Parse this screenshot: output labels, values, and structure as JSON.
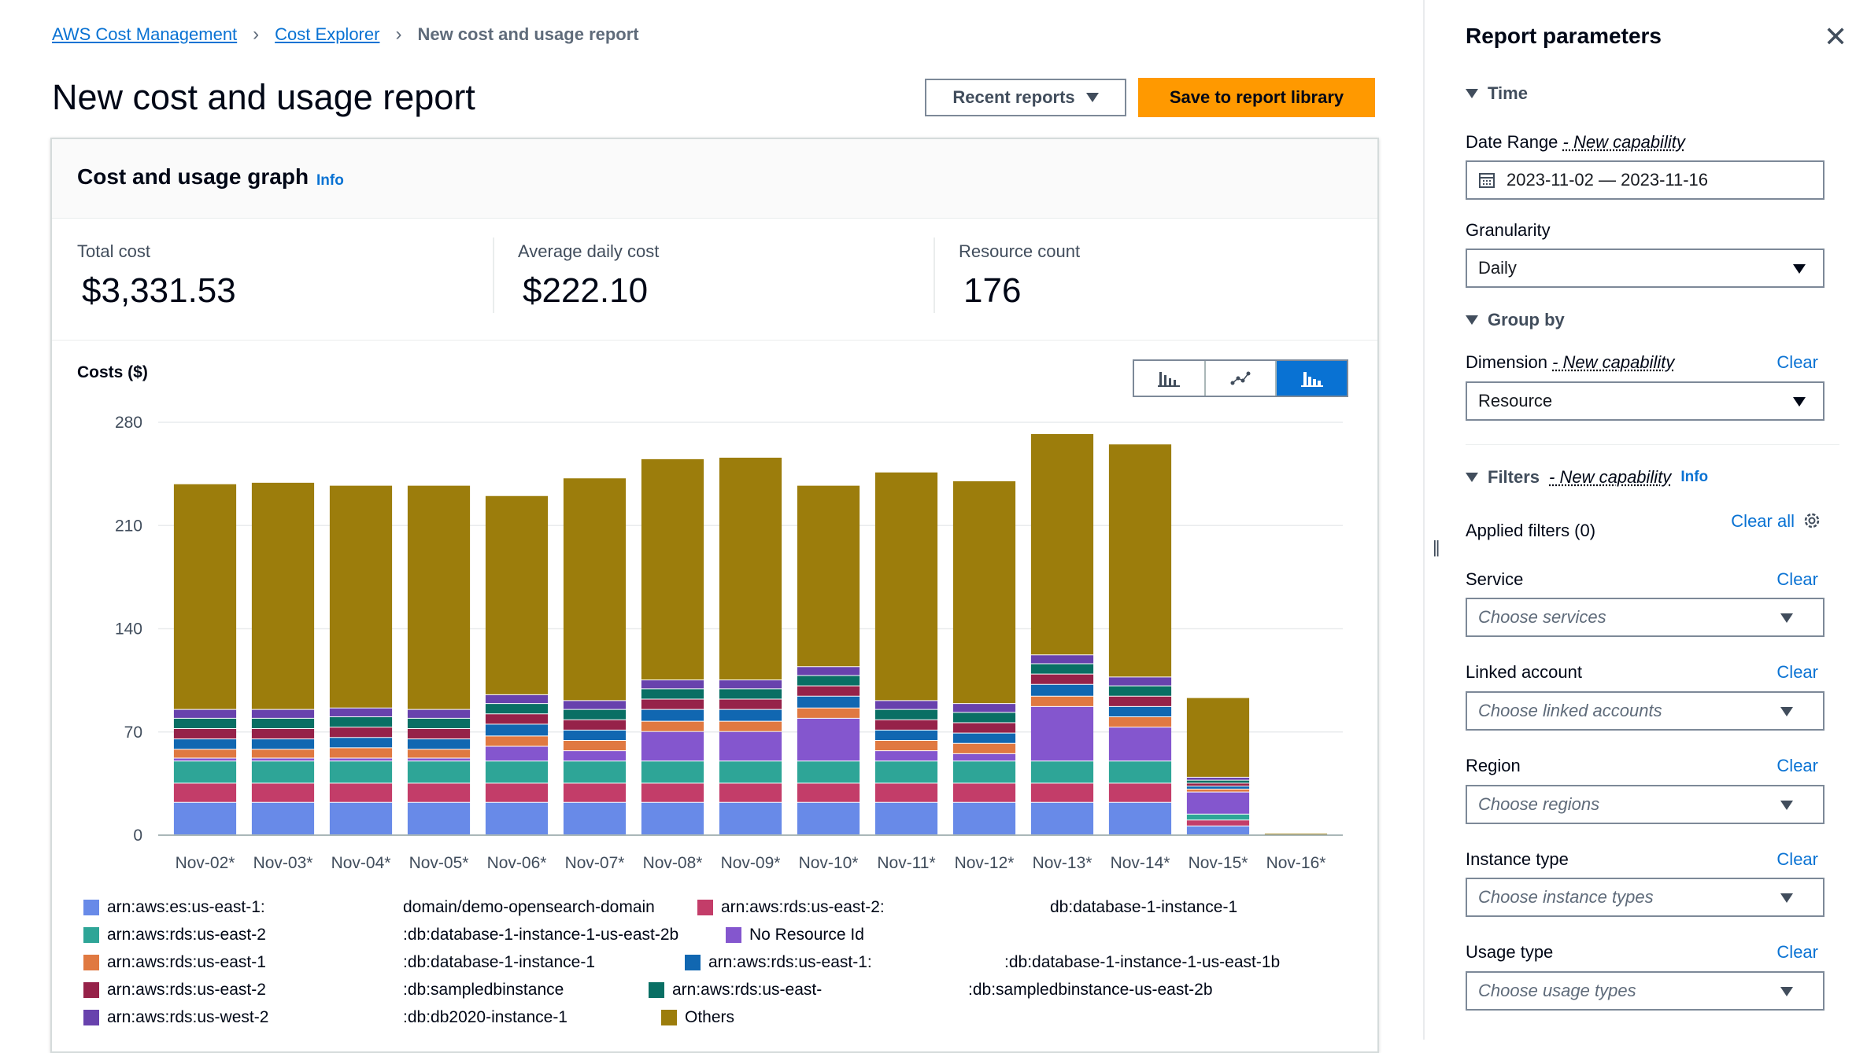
{
  "breadcrumb": {
    "items": [
      "AWS Cost Management",
      "Cost Explorer"
    ],
    "current": "New cost and usage report"
  },
  "page": {
    "title": "New cost and usage report",
    "recent_reports": "Recent reports",
    "save_button": "Save to report library"
  },
  "graph_card": {
    "title": "Cost and usage graph",
    "info": "Info",
    "metrics": [
      {
        "label": "Total cost",
        "value": "$3,331.53"
      },
      {
        "label": "Average daily cost",
        "value": "$222.10"
      },
      {
        "label": "Resource count",
        "value": "176"
      }
    ],
    "costs_label": "Costs ($)"
  },
  "chart_data": {
    "type": "bar",
    "stacked": true,
    "categories": [
      "Nov-02*",
      "Nov-03*",
      "Nov-04*",
      "Nov-05*",
      "Nov-06*",
      "Nov-07*",
      "Nov-08*",
      "Nov-09*",
      "Nov-10*",
      "Nov-11*",
      "Nov-12*",
      "Nov-13*",
      "Nov-14*",
      "Nov-15*",
      "Nov-16*"
    ],
    "ylim": [
      0,
      280
    ],
    "yticks": [
      0,
      70,
      140,
      210,
      280
    ],
    "grid": true,
    "legend_position": "bottom",
    "series": [
      {
        "name": "arn:aws:es:us-east-1:",
        "label_tail": "domain/demo-opensearch-domain",
        "color": "#688ae8",
        "values": [
          22,
          22,
          22,
          22,
          22,
          22,
          22,
          22,
          22,
          22,
          22,
          22,
          22,
          6,
          0
        ]
      },
      {
        "name": "arn:aws:rds:us-east-2:",
        "label_tail": "db:database-1-instance-1",
        "color": "#c33d69",
        "values": [
          13,
          13,
          13,
          13,
          13,
          13,
          13,
          13,
          13,
          13,
          13,
          13,
          13,
          4,
          0
        ]
      },
      {
        "name": "arn:aws:rds:us-east-2",
        "label_tail": ":db:database-1-instance-1-us-east-2b",
        "color": "#2ea597",
        "values": [
          15,
          15,
          15,
          15,
          15,
          15,
          15,
          15,
          15,
          15,
          15,
          15,
          15,
          4,
          0
        ]
      },
      {
        "name": "No Resource Id",
        "label_tail": "",
        "color": "#8456ce",
        "values": [
          2,
          2,
          2,
          2,
          10,
          7,
          20,
          20,
          29,
          7,
          5,
          37,
          23,
          15,
          0
        ]
      },
      {
        "name": "arn:aws:rds:us-east-1",
        "label_tail": ":db:database-1-instance-1",
        "color": "#e07941",
        "values": [
          6,
          6,
          7,
          6,
          7,
          7,
          7,
          7,
          7,
          7,
          7,
          7,
          7,
          2,
          0
        ]
      },
      {
        "name": "arn:aws:rds:us-east-1:",
        "label_tail": ":db:database-1-instance-1-us-east-1b",
        "color": "#1167b1",
        "values": [
          7,
          7,
          7,
          7,
          8,
          7,
          8,
          8,
          8,
          7,
          7,
          8,
          7,
          2,
          0
        ]
      },
      {
        "name": "arn:aws:rds:us-east-2",
        "label_tail": ":db:sampledbinstance",
        "color": "#962249",
        "values": [
          7,
          7,
          7,
          7,
          7,
          7,
          7,
          7,
          7,
          7,
          7,
          7,
          7,
          2,
          0
        ]
      },
      {
        "name": "arn:aws:rds:us-east-",
        "label_tail": ":db:sampledbinstance-us-east-2b",
        "color": "#096f64",
        "values": [
          7,
          7,
          7,
          7,
          7,
          7,
          7,
          7,
          7,
          7,
          7,
          7,
          7,
          2,
          0
        ]
      },
      {
        "name": "arn:aws:rds:us-west-2",
        "label_tail": ":db:db2020-instance-1",
        "color": "#6842ad",
        "values": [
          6,
          6,
          6,
          6,
          6,
          6,
          6,
          6,
          6,
          6,
          6,
          6,
          6,
          2,
          0
        ]
      },
      {
        "name": "Others",
        "label_tail": "",
        "color": "#9c7d0c",
        "values": [
          153,
          154,
          151,
          152,
          135,
          151,
          150,
          151,
          123,
          155,
          151,
          150,
          158,
          54,
          1
        ]
      }
    ]
  },
  "panel": {
    "title": "Report parameters",
    "time_section": "Time",
    "date_range_label": "Date Range",
    "new_capability": "- New capability",
    "date_range_value": "2023-11-02 — 2023-11-16",
    "granularity_label": "Granularity",
    "granularity_value": "Daily",
    "group_by_section": "Group by",
    "dimension_label": "Dimension",
    "dimension_value": "Resource",
    "clear": "Clear",
    "filters_section": "Filters",
    "filters_info": "Info",
    "applied_filters": "Applied filters (0)",
    "clear_all": "Clear all",
    "filters": [
      {
        "label": "Service",
        "placeholder": "Choose services"
      },
      {
        "label": "Linked account",
        "placeholder": "Choose linked accounts"
      },
      {
        "label": "Region",
        "placeholder": "Choose regions"
      },
      {
        "label": "Instance type",
        "placeholder": "Choose instance types"
      },
      {
        "label": "Usage type",
        "placeholder": "Choose usage types"
      }
    ]
  }
}
